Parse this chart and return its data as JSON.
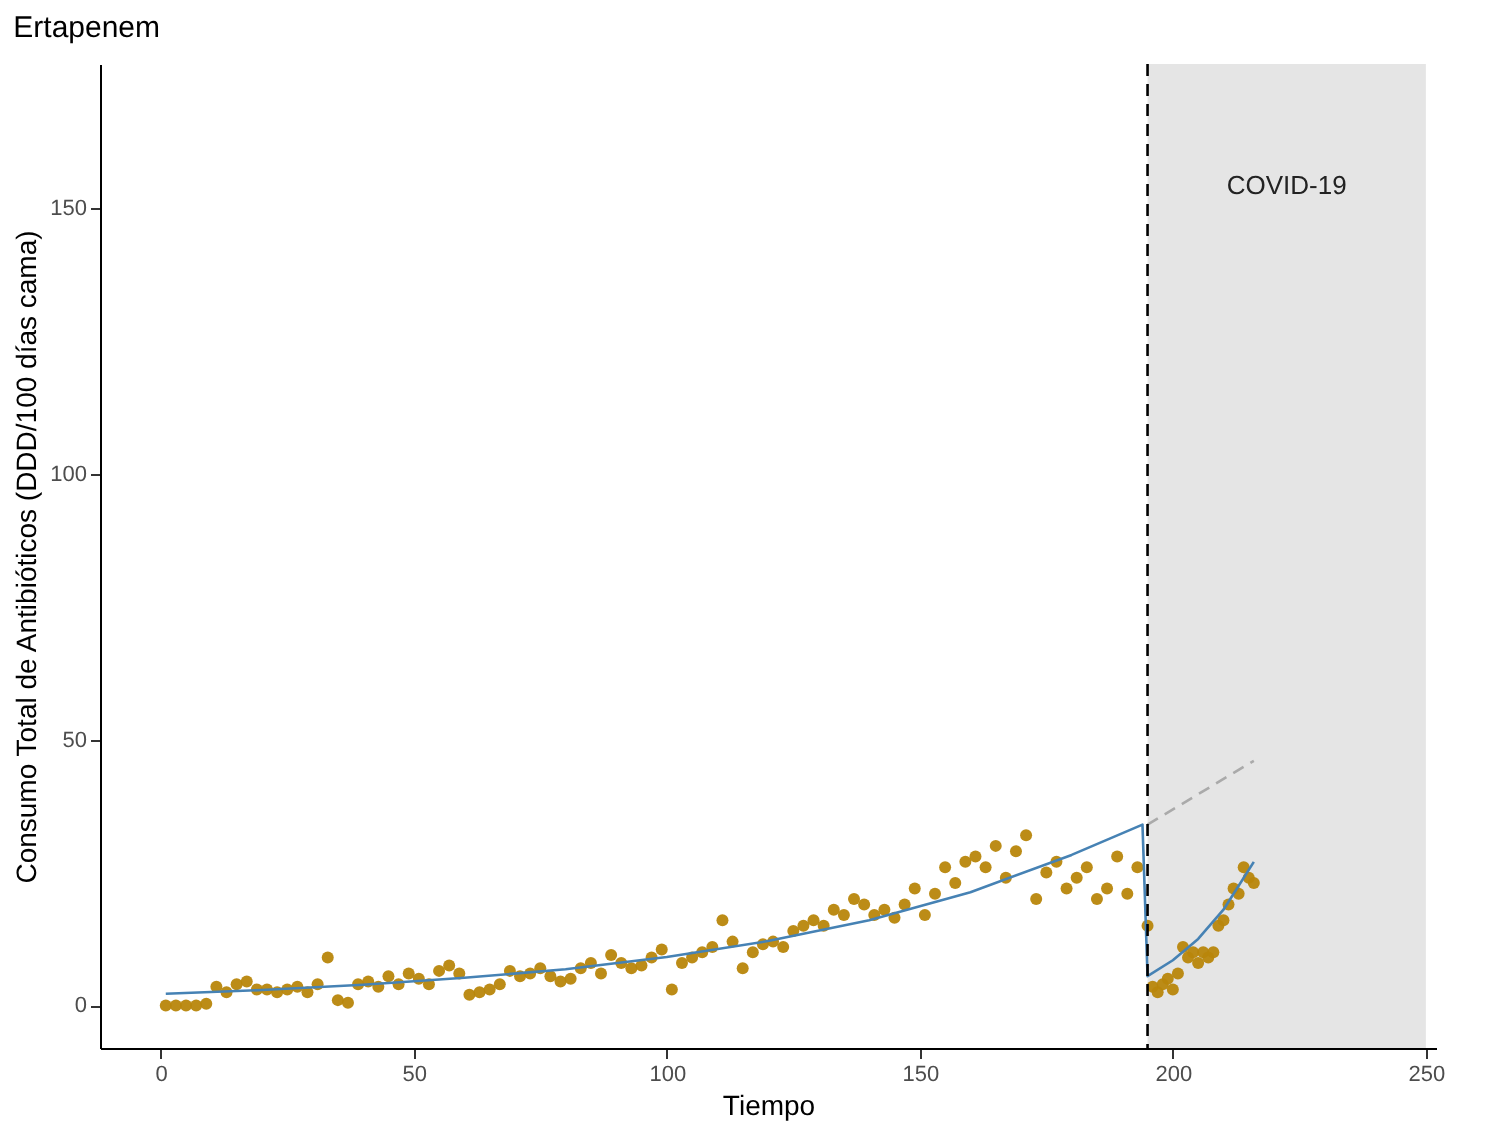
{
  "chart_data": {
    "type": "scatter",
    "title": "Ertapenem",
    "xlabel": "Tiempo",
    "ylabel": "Consumo Total de Antibióticos (DDD/100 días cama)",
    "xlim": [
      -12,
      252
    ],
    "ylim": [
      -8,
      177
    ],
    "xticks": [
      0,
      50,
      100,
      150,
      200,
      250
    ],
    "yticks": [
      0,
      50,
      100,
      150
    ],
    "grid": false,
    "series": [
      {
        "color": "#b8860b",
        "marker": "circle",
        "x": [
          1,
          3,
          5,
          7,
          9,
          11,
          13,
          15,
          17,
          19,
          21,
          23,
          25,
          27,
          29,
          31,
          33,
          35,
          37,
          39,
          41,
          43,
          45,
          47,
          49,
          51,
          53,
          55,
          57,
          59,
          61,
          63,
          65,
          67,
          69,
          71,
          73,
          75,
          77,
          79,
          81,
          83,
          85,
          87,
          89,
          91,
          93,
          95,
          97,
          99,
          101,
          103,
          105,
          107,
          109,
          111,
          113,
          115,
          117,
          119,
          121,
          123,
          125,
          127,
          129,
          131,
          133,
          135,
          137,
          139,
          141,
          143,
          145,
          147,
          149,
          151,
          153,
          155,
          157,
          159,
          161,
          163,
          165,
          167,
          169,
          171,
          173,
          175,
          177,
          179,
          181,
          183,
          185,
          187,
          189,
          191,
          193,
          195,
          196,
          197,
          198,
          199,
          200,
          201,
          202,
          203,
          204,
          205,
          206,
          207,
          208,
          209,
          210,
          211,
          212,
          213,
          214,
          215,
          216
        ],
        "values": [
          0,
          0,
          0,
          0,
          0.3,
          3.5,
          2.5,
          4,
          4.5,
          3,
          3,
          2.5,
          3,
          3.5,
          2.5,
          4,
          9,
          1,
          0.5,
          4,
          4.5,
          3.5,
          5.5,
          4,
          6,
          5,
          4,
          6.5,
          7.5,
          6,
          2,
          2.5,
          3,
          4,
          6.5,
          5.5,
          6,
          7,
          5.5,
          4.5,
          5,
          7,
          8,
          6,
          9.5,
          8,
          7,
          7.5,
          9,
          10.5,
          3,
          8,
          9,
          10,
          11,
          16,
          12,
          7,
          10,
          11.5,
          12,
          11,
          14,
          15,
          16,
          15,
          18,
          17,
          20,
          19,
          17,
          18,
          16.5,
          19,
          22,
          17,
          21,
          26,
          23,
          27,
          28,
          26,
          30,
          24,
          29,
          32,
          20,
          25,
          27,
          22,
          24,
          26,
          20,
          22,
          28,
          21,
          26,
          15,
          3.5,
          2.5,
          4,
          5,
          3,
          6,
          11,
          9,
          10,
          8,
          10,
          9,
          10,
          15,
          16,
          19,
          22,
          21,
          26,
          24,
          23
        ]
      },
      {
        "type": "line",
        "color": "#4682b4",
        "line_style": "solid",
        "marker": "none",
        "x": [
          1,
          20,
          40,
          60,
          80,
          100,
          120,
          140,
          160,
          180,
          194,
          195,
          200,
          205,
          210,
          216
        ],
        "values": [
          2.2,
          2.9,
          3.9,
          5.2,
          6.8,
          9.1,
          12.1,
          16,
          21.3,
          28.3,
          34,
          5.5,
          8.5,
          12.5,
          18,
          27
        ]
      },
      {
        "type": "line",
        "color": "#aaaaaa",
        "line_style": "dashed",
        "marker": "none",
        "x": [
          195,
          216
        ],
        "values": [
          34,
          46
        ]
      }
    ],
    "ref_lines": [
      {
        "axis": "x",
        "value": 195,
        "color": "#000000",
        "line_style": "dashed"
      }
    ],
    "bands": [
      {
        "axis": "x",
        "from": 195,
        "to": 250,
        "label": "COVID-19",
        "color": "#e5e5e5"
      }
    ]
  }
}
